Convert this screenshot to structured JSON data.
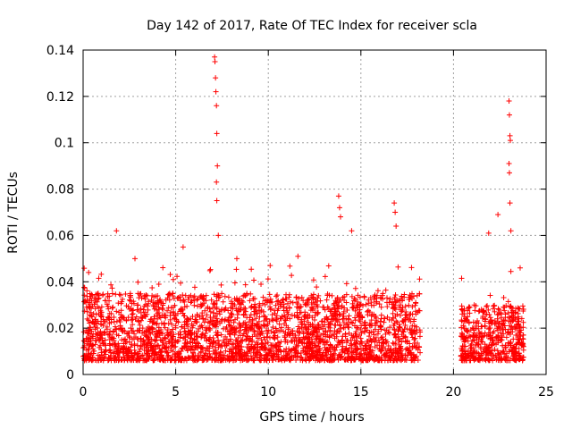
{
  "chart_data": {
    "type": "scatter",
    "title": "Day 142 of 2017, Rate Of TEC Index for receiver scla",
    "xlabel": "GPS time / hours",
    "ylabel": "ROTI / TECUs",
    "xlim": [
      0,
      25
    ],
    "ylim": [
      0,
      0.14
    ],
    "xticks": [
      0,
      5,
      10,
      15,
      20,
      25
    ],
    "xtick_labels": [
      "0",
      "5",
      "10",
      "15",
      "20",
      "25"
    ],
    "yticks": [
      0,
      0.02,
      0.04,
      0.06,
      0.08,
      0.1,
      0.12,
      0.14
    ],
    "ytick_labels": [
      "0",
      "0.02",
      "0.04",
      "0.06",
      "0.08",
      "0.1",
      "0.12",
      "0.14"
    ],
    "grid": true,
    "marker": "+",
    "color": "#ff0000",
    "series": [
      {
        "name": "ROTI",
        "segments": [
          {
            "x_start": 0.0,
            "x_end": 18.2,
            "typical_min": 0.006,
            "typical_max": 0.035
          },
          {
            "x_start": 20.4,
            "x_end": 23.8,
            "typical_min": 0.006,
            "typical_max": 0.03
          }
        ],
        "notable_points": [
          {
            "x": 0.3,
            "y": 0.044
          },
          {
            "x": 1.8,
            "y": 0.062
          },
          {
            "x": 2.8,
            "y": 0.05
          },
          {
            "x": 5.4,
            "y": 0.055
          },
          {
            "x": 7.1,
            "y": 0.137
          },
          {
            "x": 7.12,
            "y": 0.135
          },
          {
            "x": 7.15,
            "y": 0.128
          },
          {
            "x": 7.17,
            "y": 0.122
          },
          {
            "x": 7.2,
            "y": 0.116
          },
          {
            "x": 7.22,
            "y": 0.104
          },
          {
            "x": 7.25,
            "y": 0.09
          },
          {
            "x": 7.2,
            "y": 0.083
          },
          {
            "x": 7.22,
            "y": 0.075
          },
          {
            "x": 7.3,
            "y": 0.06
          },
          {
            "x": 8.3,
            "y": 0.05
          },
          {
            "x": 10.1,
            "y": 0.047
          },
          {
            "x": 11.6,
            "y": 0.051
          },
          {
            "x": 13.8,
            "y": 0.077
          },
          {
            "x": 13.85,
            "y": 0.072
          },
          {
            "x": 13.9,
            "y": 0.068
          },
          {
            "x": 14.5,
            "y": 0.062
          },
          {
            "x": 16.8,
            "y": 0.074
          },
          {
            "x": 16.85,
            "y": 0.07
          },
          {
            "x": 16.9,
            "y": 0.064
          },
          {
            "x": 21.9,
            "y": 0.061
          },
          {
            "x": 22.4,
            "y": 0.069
          },
          {
            "x": 23.0,
            "y": 0.118
          },
          {
            "x": 23.02,
            "y": 0.112
          },
          {
            "x": 23.05,
            "y": 0.103
          },
          {
            "x": 23.07,
            "y": 0.101
          },
          {
            "x": 23.0,
            "y": 0.091
          },
          {
            "x": 23.02,
            "y": 0.087
          },
          {
            "x": 23.05,
            "y": 0.074
          },
          {
            "x": 23.1,
            "y": 0.062
          },
          {
            "x": 23.6,
            "y": 0.046
          }
        ]
      }
    ]
  }
}
